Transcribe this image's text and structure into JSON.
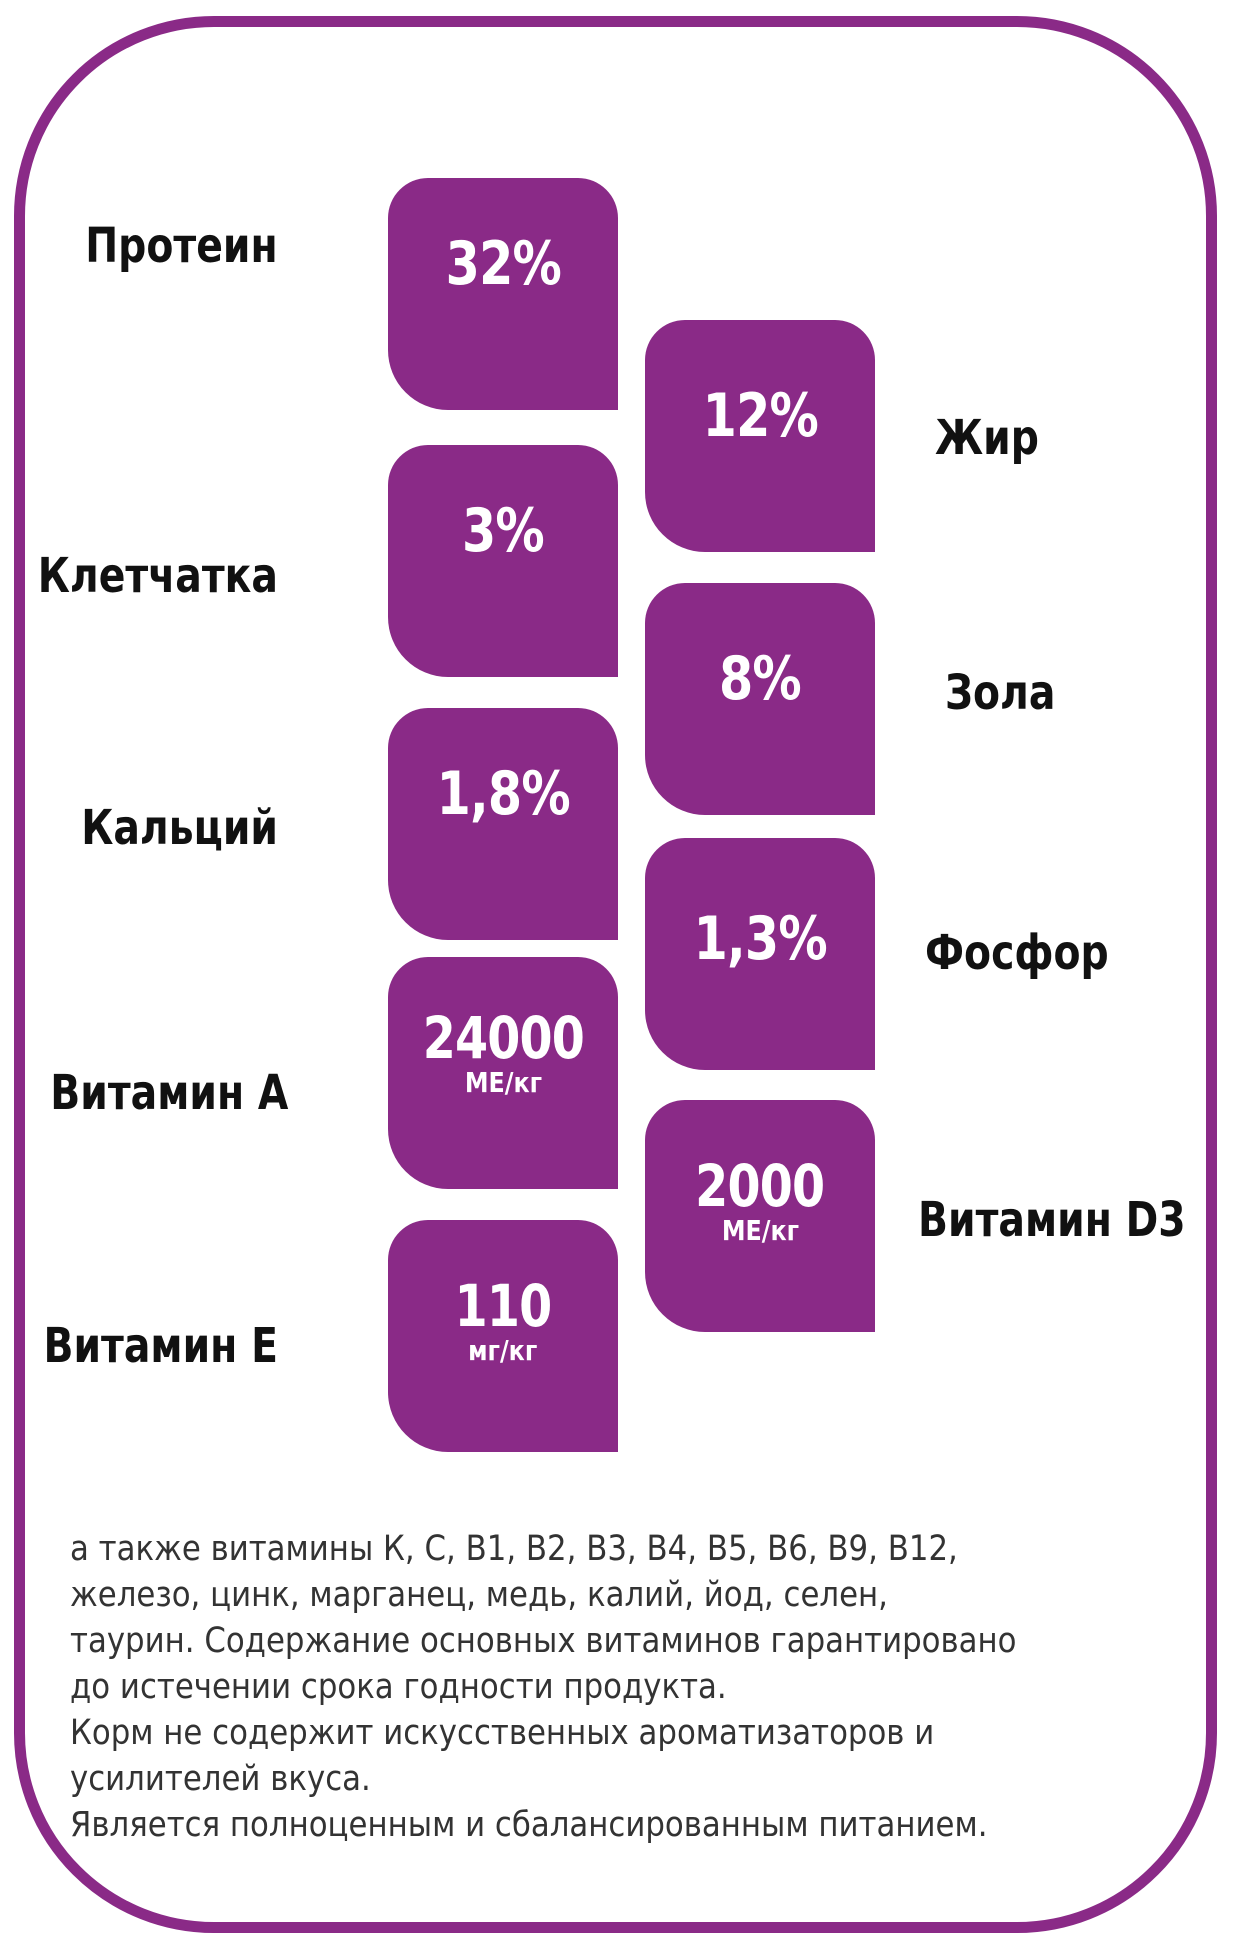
{
  "nutrients": {
    "protein": {
      "label": "Протеин",
      "value": "32%"
    },
    "fat": {
      "label": "Жир",
      "value": "12%"
    },
    "fiber": {
      "label": "Клетчатка",
      "value": "3%"
    },
    "ash": {
      "label": "Зола",
      "value": "8%"
    },
    "calcium": {
      "label": "Кальций",
      "value": "1,8%"
    },
    "phosphorus": {
      "label": "Фосфор",
      "value": "1,3%"
    },
    "vitamin_a": {
      "label": "Витамин A",
      "value": "24000",
      "unit": "МЕ/кг"
    },
    "vitamin_d3": {
      "label": "Витамин D3",
      "value": "2000",
      "unit": "МЕ/кг"
    },
    "vitamin_e": {
      "label": "Витамин E",
      "value": "110",
      "unit": "мг/кг"
    }
  },
  "notes": {
    "line1": "а также витамины К, С, В1, В2, В3, В4, В5, В6, В9, В12,",
    "line2": "железо, цинк, марганец, медь, калий, йод, селен,",
    "line3": "таурин. Содержание основных витаминов гарантировано",
    "line4": "до истечении срока годности продукта.",
    "line5": "Корм не содержит искусственных ароматизаторов и",
    "line6": "усилителей вкуса.",
    "line7": "Является полноценным и сбалансированным питанием."
  },
  "colors": {
    "accent": "#8a2a87",
    "text": "#111111",
    "notes_text": "#333333"
  }
}
